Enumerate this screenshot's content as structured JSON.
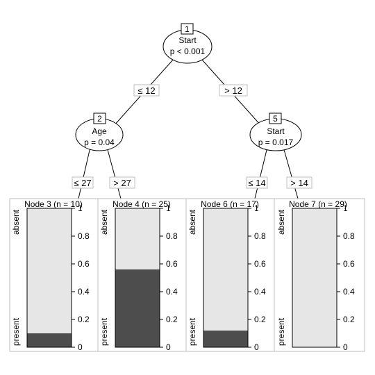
{
  "inner_nodes": [
    {
      "id": "1",
      "variable": "Start",
      "pvalue": "p < 0.001"
    },
    {
      "id": "2",
      "variable": "Age",
      "pvalue": "p = 0.04"
    },
    {
      "id": "5",
      "variable": "Start",
      "pvalue": "p = 0.017"
    }
  ],
  "edges": [
    {
      "from": "1",
      "to": "2",
      "label": "≤ 12"
    },
    {
      "from": "1",
      "to": "5",
      "label": "> 12"
    },
    {
      "from": "2",
      "to": "3",
      "label": "≤ 27"
    },
    {
      "from": "2",
      "to": "4",
      "label": "> 27"
    },
    {
      "from": "5",
      "to": "6",
      "label": "≤ 14"
    },
    {
      "from": "5",
      "to": "7",
      "label": "> 14"
    }
  ],
  "terminal_nodes": [
    {
      "id": "3",
      "title": "Node 3 (n = 10)",
      "present_fraction": 0.1
    },
    {
      "id": "4",
      "title": "Node 4 (n = 25)",
      "present_fraction": 0.56
    },
    {
      "id": "6",
      "title": "Node 6 (n = 17)",
      "present_fraction": 0.12
    },
    {
      "id": "7",
      "title": "Node 7 (n = 29)",
      "present_fraction": 0.0
    }
  ],
  "bar_labels": {
    "top": "absent",
    "bottom": "present"
  },
  "y_ticks": [
    "0",
    "0.2",
    "0.4",
    "0.6",
    "0.8",
    "1"
  ],
  "colors": {
    "present": "#4d4d4d",
    "absent": "#e6e6e6",
    "line": "#000000",
    "frame": "#bebebe",
    "label_box": "#ffffff"
  }
}
